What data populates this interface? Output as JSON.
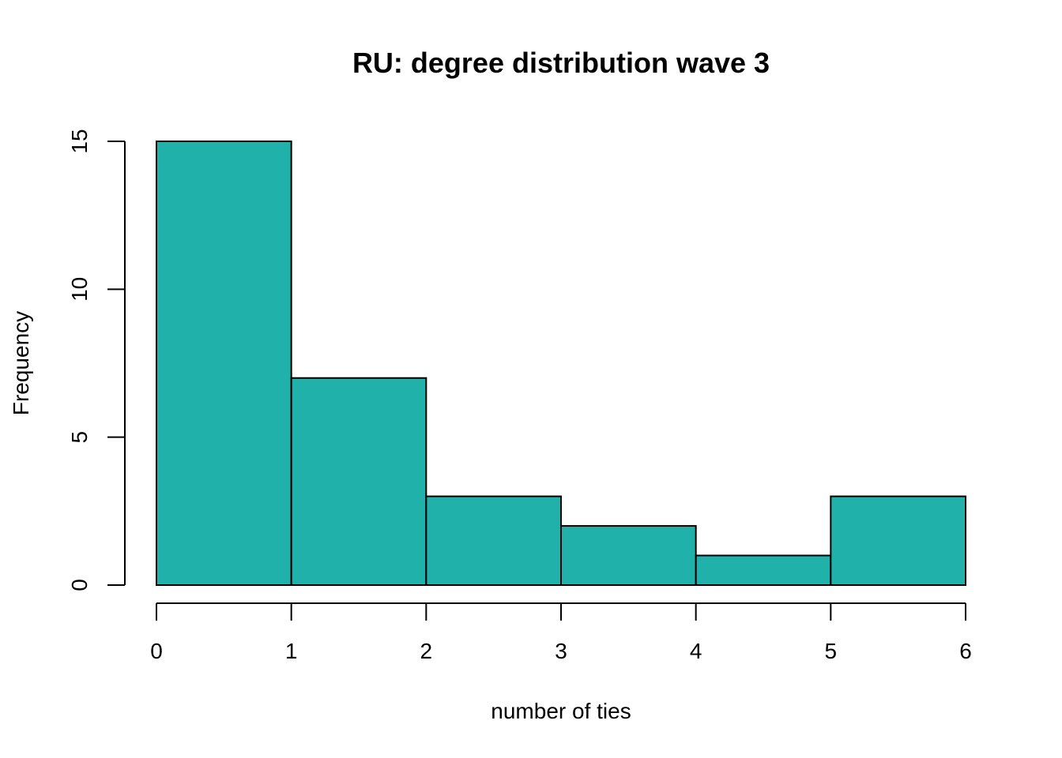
{
  "chart_data": {
    "type": "bar",
    "title": "RU: degree distribution wave 3",
    "xlabel": "number of ties",
    "ylabel": "Frequency",
    "bins": [
      {
        "start": 0,
        "end": 1,
        "value": 15
      },
      {
        "start": 1,
        "end": 2,
        "value": 7
      },
      {
        "start": 2,
        "end": 3,
        "value": 3
      },
      {
        "start": 3,
        "end": 4,
        "value": 2
      },
      {
        "start": 4,
        "end": 5,
        "value": 1
      },
      {
        "start": 5,
        "end": 6,
        "value": 3
      }
    ],
    "xlim": [
      0,
      6
    ],
    "ylim": [
      0,
      15
    ],
    "x_ticks": [
      "0",
      "1",
      "2",
      "3",
      "4",
      "5",
      "6"
    ],
    "y_ticks": [
      "0",
      "5",
      "10",
      "15"
    ],
    "bar_color": "#20B2AA",
    "edge_color": "#000000",
    "grid": false,
    "legend": false
  }
}
